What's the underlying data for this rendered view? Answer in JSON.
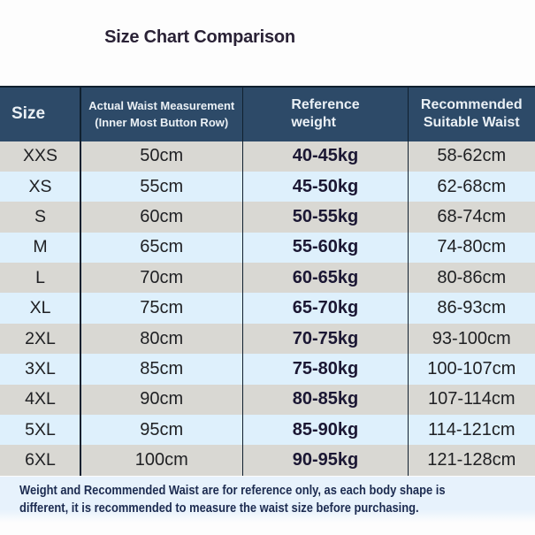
{
  "page": {
    "title": "Size Chart Comparison"
  },
  "table": {
    "headers": {
      "size": "Size",
      "waist_line1": "Actual Waist Measurement",
      "waist_line2": "(Inner Most Button Row)",
      "weight_line1": "Reference",
      "weight_line2": "weight",
      "recommended_line1": "Recommended",
      "recommended_line2": "Suitable Waist"
    },
    "rows": [
      {
        "size": "XXS",
        "waist": "50cm",
        "weight": "40-45kg",
        "recommended": "58-62cm"
      },
      {
        "size": "XS",
        "waist": "55cm",
        "weight": "45-50kg",
        "recommended": "62-68cm"
      },
      {
        "size": "S",
        "waist": "60cm",
        "weight": "50-55kg",
        "recommended": "68-74cm"
      },
      {
        "size": "M",
        "waist": "65cm",
        "weight": "55-60kg",
        "recommended": "74-80cm"
      },
      {
        "size": "L",
        "waist": "70cm",
        "weight": "60-65kg",
        "recommended": "80-86cm"
      },
      {
        "size": "XL",
        "waist": "75cm",
        "weight": "65-70kg",
        "recommended": "86-93cm"
      },
      {
        "size": "2XL",
        "waist": "80cm",
        "weight": "70-75kg",
        "recommended": "93-100cm"
      },
      {
        "size": "3XL",
        "waist": "85cm",
        "weight": "75-80kg",
        "recommended": "100-107cm"
      },
      {
        "size": "4XL",
        "waist": "90cm",
        "weight": "80-85kg",
        "recommended": "107-114cm"
      },
      {
        "size": "5XL",
        "waist": "95cm",
        "weight": "85-90kg",
        "recommended": "114-121cm"
      },
      {
        "size": "6XL",
        "waist": "100cm",
        "weight": "90-95kg",
        "recommended": "121-128cm"
      }
    ]
  },
  "footer": {
    "line1": "Weight and Recommended Waist are for reference only, as each body shape is",
    "line2": "different, it is recommended to measure the waist size before purchasing."
  },
  "colors": {
    "title_text": "#2a2236",
    "header_bg": "#2d4a68",
    "header_text": "#eaf0f5",
    "row_gray": "#d9d8d3",
    "row_blue": "#def0fc",
    "body_text": "#1f2023",
    "weight_text": "#1b1733",
    "divider": "#10202f",
    "footer_bg": "#e7f2fc",
    "footer_text": "#1c2b50"
  }
}
